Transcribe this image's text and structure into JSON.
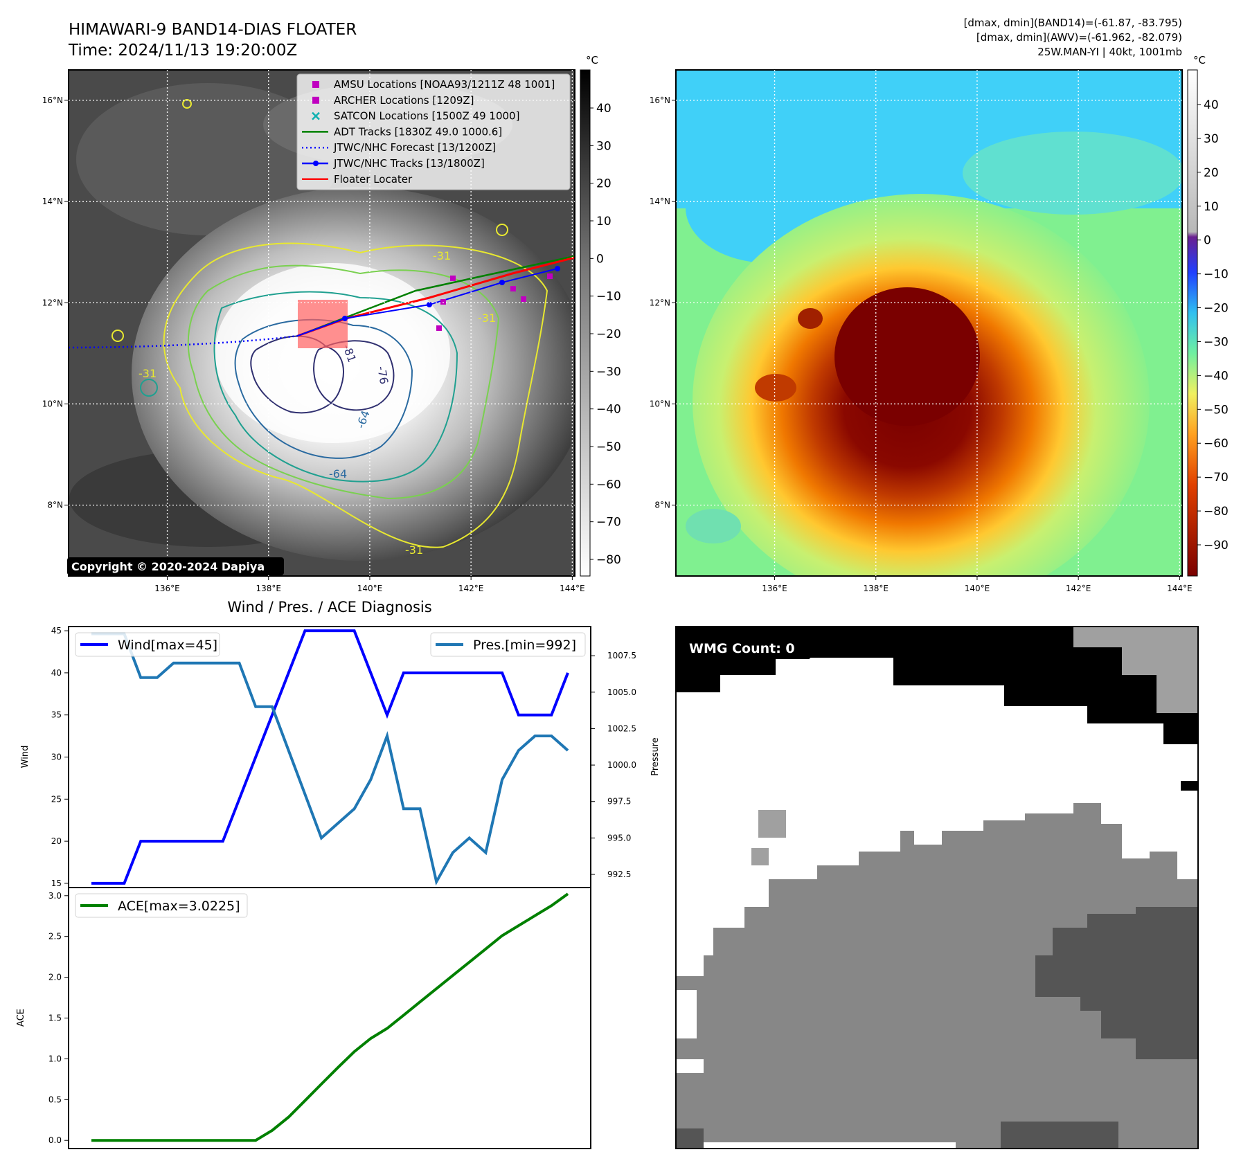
{
  "header": {
    "title_line1": "HIMAWARI-9 BAND14-DIAS FLOATER",
    "title_line2": "Time: 2024/11/13 19:20:00Z",
    "info_line1": "[dmax, dmin](BAND14)=(-61.87, -83.795)",
    "info_line2": "[dmax, dmin](AWV)=(-61.962, -82.079)",
    "info_line3": "25W.MAN-YI | 40kt, 1001mb"
  },
  "maps": {
    "lon_ticks": [
      "136°E",
      "138°E",
      "140°E",
      "142°E",
      "144°E"
    ],
    "lat_ticks": [
      "16°N",
      "14°N",
      "12°N",
      "10°N",
      "8°N"
    ],
    "lon_range": [
      134.05,
      144.05
    ],
    "lat_range": [
      6.6,
      16.6
    ],
    "copyright": "Copyright © 2020-2024 Dapiya",
    "legend": [
      {
        "label": "AMSU Locations [NOAA93/1211Z 48 1001]",
        "marker": "square",
        "color": "#c000c0"
      },
      {
        "label": "ARCHER Locations [1209Z]",
        "marker": "square",
        "color": "#c000c0"
      },
      {
        "label": "SATCON Locations [1500Z 49 1000]",
        "marker": "x",
        "color": "#10b0b0"
      },
      {
        "label": "ADT Tracks [1830Z 49.0 1000.6]",
        "marker": "line",
        "color": "#008000"
      },
      {
        "label": "JTWC/NHC Forecast [13/1200Z]",
        "marker": "dotted",
        "color": "#0000ff"
      },
      {
        "label": "JTWC/NHC Tracks [13/1800Z]",
        "marker": "line-dot",
        "color": "#0000ff"
      },
      {
        "label": "Floater Locater",
        "marker": "line",
        "color": "#ff0000"
      }
    ],
    "contour_labels": [
      "-76",
      "-81",
      "-64",
      "-64",
      "-31",
      "-31",
      "-31",
      "-31"
    ],
    "cbar_unit": "°C",
    "cbar_left_ticks": [
      "40",
      "30",
      "20",
      "10",
      "0",
      "−10",
      "−20",
      "−30",
      "−40",
      "−50",
      "−60",
      "−70",
      "−80"
    ],
    "cbar_right_ticks": [
      "40",
      "30",
      "20",
      "10",
      "0",
      "−10",
      "−20",
      "−30",
      "−40",
      "−50",
      "−60",
      "−70",
      "−80",
      "−90"
    ],
    "colors": {
      "cold_core": "#7a0000",
      "ring_orange": "#ff9000",
      "background_green": "#80f090",
      "sky_blue": "#40d0f8"
    }
  },
  "chart_data": [
    {
      "type": "line",
      "title": "Wind / Pres. / ACE Diagnosis",
      "ylabel": "Wind",
      "ylim": [
        14.5,
        45.5
      ],
      "yticks": [
        "45",
        "40",
        "35",
        "30",
        "25",
        "20",
        "15"
      ],
      "series": [
        {
          "name": "Wind[max=45]",
          "color": "#0000ff",
          "values": [
            15,
            15,
            15,
            20,
            20,
            20,
            20,
            20,
            20,
            25,
            30,
            35,
            40,
            45,
            45,
            45,
            45,
            40,
            35,
            40,
            40,
            40,
            40,
            40,
            40,
            40,
            35,
            35,
            35,
            40
          ]
        }
      ]
    },
    {
      "type": "line",
      "ylabel": "Pressure",
      "ylim": [
        991.6,
        1009.5
      ],
      "yticks": [
        "1007.5",
        "1005.0",
        "1002.5",
        "1000.0",
        "997.5",
        "995.0",
        "992.5"
      ],
      "series": [
        {
          "name": "Pres.[min=992]",
          "color": "#1f77b4",
          "values": [
            1009,
            1009,
            1009,
            1006,
            1006,
            1007,
            1007,
            1007,
            1007,
            1007,
            1004,
            1004,
            1001,
            998,
            995,
            996,
            997,
            999,
            1002,
            997,
            997,
            992,
            994,
            995,
            994,
            999,
            1001,
            1002,
            1002,
            1001
          ]
        }
      ]
    },
    {
      "type": "line",
      "ylabel": "ACE",
      "ylim": [
        -0.1,
        3.1
      ],
      "yticks": [
        "3.0",
        "2.5",
        "2.0",
        "1.5",
        "1.0",
        "0.5",
        "0.0"
      ],
      "series": [
        {
          "name": "ACE[max=3.0225]",
          "color": "#008000",
          "values": [
            0,
            0,
            0,
            0,
            0,
            0,
            0,
            0,
            0,
            0,
            0,
            0.1225,
            0.285,
            0.4875,
            0.69,
            0.8925,
            1.0875,
            1.25,
            1.3725,
            1.535,
            1.6975,
            1.86,
            2.0225,
            2.185,
            2.3475,
            2.51,
            2.6325,
            2.755,
            2.8775,
            3.0225
          ]
        }
      ]
    }
  ],
  "wmg": {
    "label": "WMG Count: 0",
    "colors": {
      "black": "#000000",
      "white": "#ffffff",
      "light_gray": "#a0a0a0",
      "gray": "#878787",
      "dark_gray": "#555555"
    }
  }
}
